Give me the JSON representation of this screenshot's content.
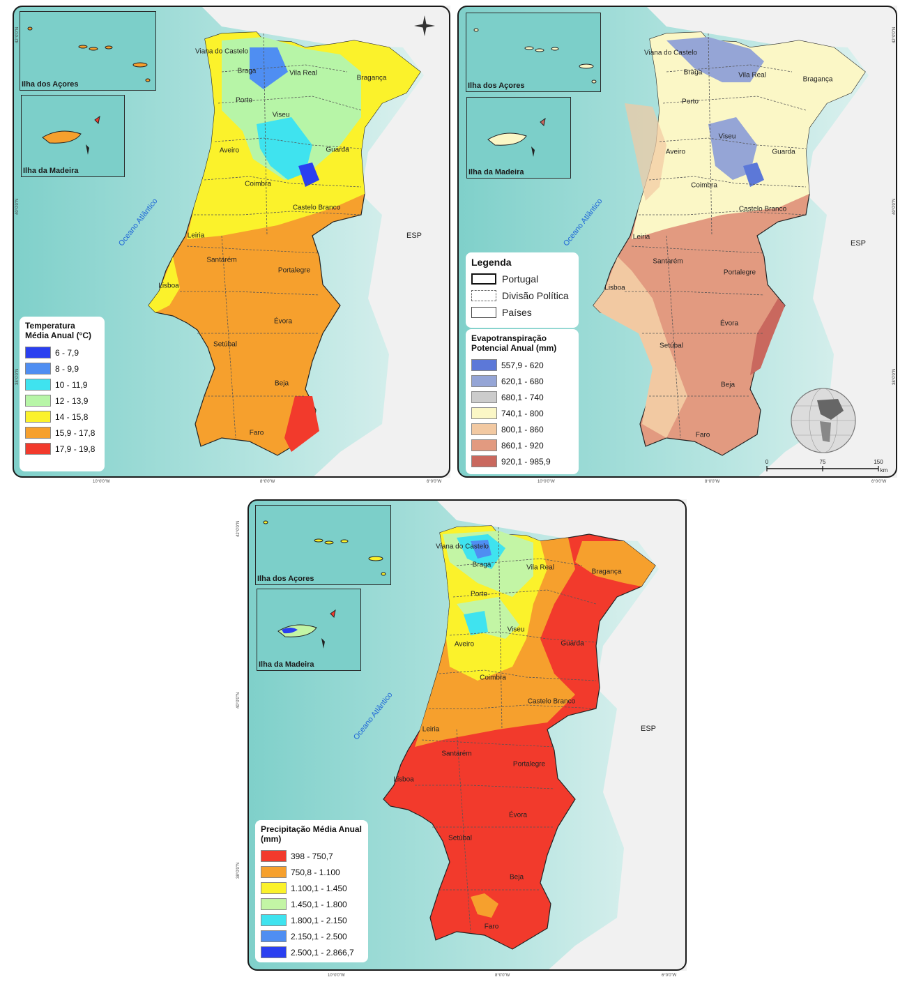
{
  "maps": [
    {
      "id": "temperature",
      "inset_azores_label": "Ilha dos Açores",
      "inset_madeira_label": "Ilha da Madeira",
      "ocean_label": "Oceano Atlântico",
      "country_label": "ESP",
      "lat_labels": [
        "42°0'0\"N",
        "40°0'0\"N",
        "38°0'0\"N"
      ],
      "lon_labels": [
        "10°0'0\"W",
        "8°0'0\"W",
        "6°0'0\"W"
      ],
      "legend": {
        "title": "Temperatura Média Anual (°C)",
        "items": [
          {
            "label": "6 - 7,9",
            "color": "#2a3ff0"
          },
          {
            "label": "8 - 9,9",
            "color": "#4f8ef2"
          },
          {
            "label": "10 - 11,9",
            "color": "#3fe3ef"
          },
          {
            "label": "12 - 13,9",
            "color": "#b7f5a7"
          },
          {
            "label": "14 - 15,8",
            "color": "#fbf22b"
          },
          {
            "label": "15,9 - 17,8",
            "color": "#f6a02d"
          },
          {
            "label": "17,9 - 19,8",
            "color": "#f23a2c"
          }
        ]
      }
    },
    {
      "id": "evapotranspiration",
      "inset_azores_label": "Ilha dos Açores",
      "inset_madeira_label": "Ilha da Madeira",
      "ocean_label": "Oceano Atlântico",
      "country_label": "ESP",
      "lat_labels": [
        "42°0'0\"N",
        "40°0'0\"N",
        "38°0'0\"N"
      ],
      "lon_labels": [
        "10°0'0\"W",
        "8°0'0\"W",
        "6°0'0\"W"
      ],
      "general_legend": {
        "title": "Legenda",
        "items": [
          {
            "label": "Portugal",
            "style": "solid"
          },
          {
            "label": "Divisão Política",
            "style": "dashed"
          },
          {
            "label": "Países",
            "style": "thin"
          }
        ]
      },
      "legend": {
        "title": "Evapotranspiração Potencial Anual (mm)",
        "items": [
          {
            "label": "557,9 - 620",
            "color": "#5c78d8"
          },
          {
            "label": "620,1 - 680",
            "color": "#95a5d6"
          },
          {
            "label": "680,1 - 740",
            "color": "#cccccc"
          },
          {
            "label": "740,1 - 800",
            "color": "#fbf7c6"
          },
          {
            "label": "800,1 - 860",
            "color": "#f2c9a2"
          },
          {
            "label": "860,1 - 920",
            "color": "#e29a80"
          },
          {
            "label": "920,1 - 985,9",
            "color": "#c9685e"
          }
        ]
      },
      "scale": {
        "ticks": [
          "0",
          "75",
          "150"
        ],
        "unit": "km"
      }
    },
    {
      "id": "precipitation",
      "inset_azores_label": "Ilha dos Açores",
      "inset_madeira_label": "Ilha da Madeira",
      "ocean_label": "Oceano Atlântico",
      "country_label": "ESP",
      "lat_labels": [
        "42°0'0\"N",
        "40°0'0\"N",
        "38°0'0\"N"
      ],
      "lon_labels": [
        "10°0'0\"W",
        "8°0'0\"W",
        "6°0'0\"W"
      ],
      "legend": {
        "title": "Precipitação Média Anual (mm)",
        "items": [
          {
            "label": "398 - 750,7",
            "color": "#f23a2c"
          },
          {
            "label": "750,8 - 1.100",
            "color": "#f6a02d"
          },
          {
            "label": "1.100,1 - 1.450",
            "color": "#fbf22b"
          },
          {
            "label": "1.450,1 - 1.800",
            "color": "#c3f5a5"
          },
          {
            "label": "1.800,1 - 2.150",
            "color": "#3fe3ef"
          },
          {
            "label": "2.150,1 - 2.500",
            "color": "#4f8ef2"
          },
          {
            "label": "2.500,1 - 2.866,7",
            "color": "#2a3ff0"
          }
        ]
      }
    }
  ],
  "cities": [
    "Viana do Castelo",
    "Braga",
    "Vila Real",
    "Bragança",
    "Porto",
    "Viseu",
    "Aveiro",
    "Guarda",
    "Coimbra",
    "Castelo Branco",
    "Leiria",
    "Santarém",
    "Portalegre",
    "Lisboa",
    "Évora",
    "Setúbal",
    "Beja",
    "Faro"
  ]
}
